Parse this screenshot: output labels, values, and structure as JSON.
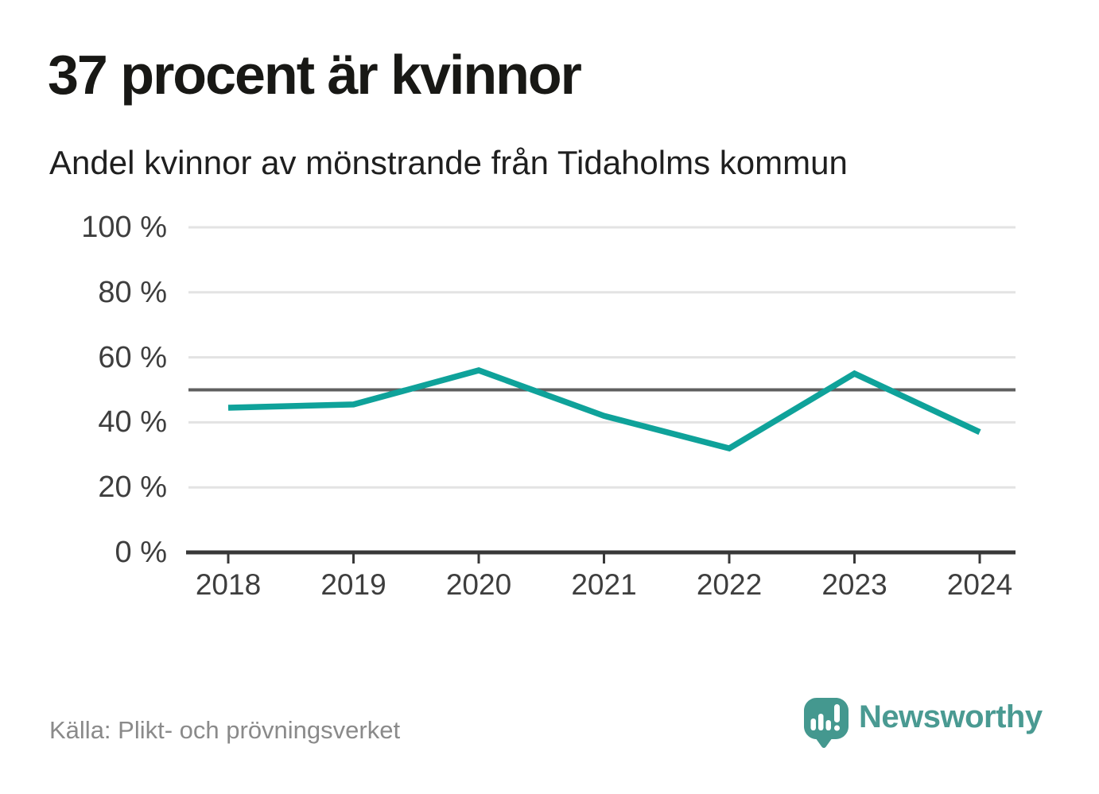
{
  "header": {
    "title": "37 procent är kvinnor",
    "subtitle": "Andel kvinnor av mönstrande från Tidaholms kommun"
  },
  "chart_data": {
    "type": "line",
    "title": "37 procent är kvinnor",
    "subtitle": "Andel kvinnor av mönstrande från Tidaholms kommun",
    "categories": [
      "2018",
      "2019",
      "2020",
      "2021",
      "2022",
      "2023",
      "2024"
    ],
    "series": [
      {
        "name": "Andel kvinnor av mönstrande",
        "values": [
          44.5,
          45.5,
          56,
          42,
          32,
          55,
          37
        ]
      }
    ],
    "xlabel": "",
    "ylabel": "",
    "ylim": [
      0,
      100
    ],
    "y_ticks": [
      0,
      20,
      40,
      60,
      80,
      100
    ],
    "y_tick_labels": [
      "0 %",
      "20 %",
      "40 %",
      "60 %",
      "80 %",
      "100 %"
    ],
    "reference_line": 50,
    "grid": "horizontal",
    "legend": "none"
  },
  "colors": {
    "line": "#0fa29a",
    "grid": "#e3e3e3",
    "reference": "#5f5f5f",
    "axis": "#383838",
    "logo": "#4a9a92"
  },
  "footer": {
    "source": "Källa: Plikt- och prövningsverket",
    "brand": "Newsworthy",
    "logo_icon": "newsworthy-speech-bubble-bar-chart-icon"
  }
}
